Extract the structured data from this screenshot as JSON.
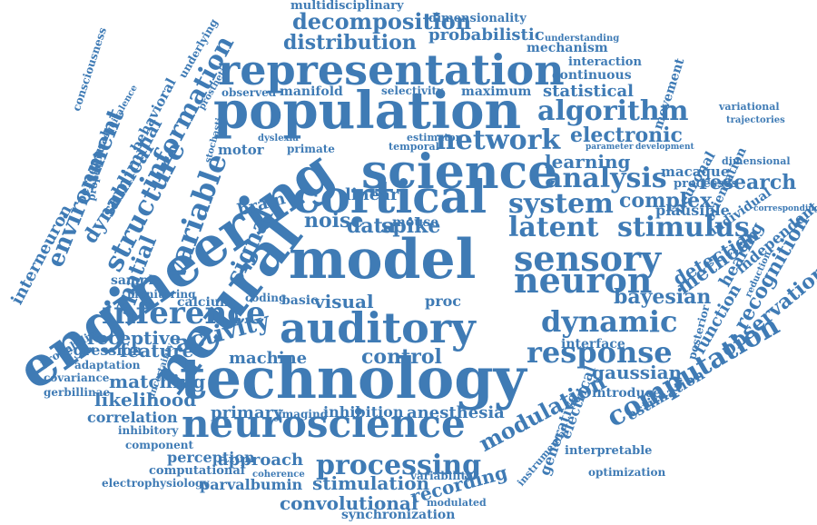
{
  "cloud": {
    "color": "#3f7bb5",
    "words": [
      "multidisciplinary",
      "consciousness",
      "dimensionality",
      "decomposition",
      "probabilistic",
      "distribution",
      "mechanism",
      "representation",
      "underlying",
      "understanding",
      "prosthetic",
      "interaction",
      "equivalence",
      "continuous",
      "movement",
      "population",
      "manifold",
      "selectivity",
      "maximum",
      "statistical",
      "variational",
      "algorithm",
      "trajectories",
      "subliminal",
      "behavioral",
      "information",
      "perceptual",
      "properties",
      "dynamical",
      "observed",
      "estimator",
      "electronic",
      "parameter",
      "engineering",
      "environment",
      "neuronal",
      "development",
      "structure",
      "temporal",
      "network",
      "dimensional",
      "science",
      "macaque",
      "dyslexia",
      "primate",
      "learning",
      "orientation",
      "variable",
      "stochastic",
      "motor",
      "analysis",
      "processes",
      "spatial",
      "neural",
      "cortical",
      "research",
      "interneuron",
      "linear",
      "mouse",
      "system",
      "complex",
      "individual",
      "brain",
      "plausible",
      "hearing",
      "noise",
      "data",
      "spike",
      "latent",
      "stimulus",
      "corresponding",
      "independent",
      "signal",
      "model",
      "sensory",
      "neuron",
      "detection",
      "sample",
      "monitoring",
      "calcium",
      "proc",
      "bayesian",
      "method",
      "recognition",
      "inference",
      "coding",
      "basic",
      "visual",
      "dynamic",
      "reduction",
      "receptive",
      "activity",
      "auditory",
      "observation",
      "probability",
      "regression",
      "feature",
      "response",
      "posterior",
      "interface",
      "function",
      "adaptation",
      "control",
      "covariance",
      "machine",
      "technology",
      "gaussian",
      "gerbillinae",
      "matching",
      "uncertainty",
      "introduce",
      "likelihood",
      "computation",
      "correlation",
      "primary",
      "imaging",
      "inhibition",
      "anesthesia",
      "electrical",
      "neuroscience",
      "estimation",
      "inhibitory",
      "component",
      "modulation",
      "generative",
      "perception",
      "approach",
      "processing",
      "interpretable",
      "computational",
      "coherence",
      "electrophysiology",
      "parvalbumin",
      "recording",
      "stimulation",
      "optimization",
      "convolutional",
      "variability",
      "modulated",
      "instrumental",
      "synchronization"
    ]
  }
}
